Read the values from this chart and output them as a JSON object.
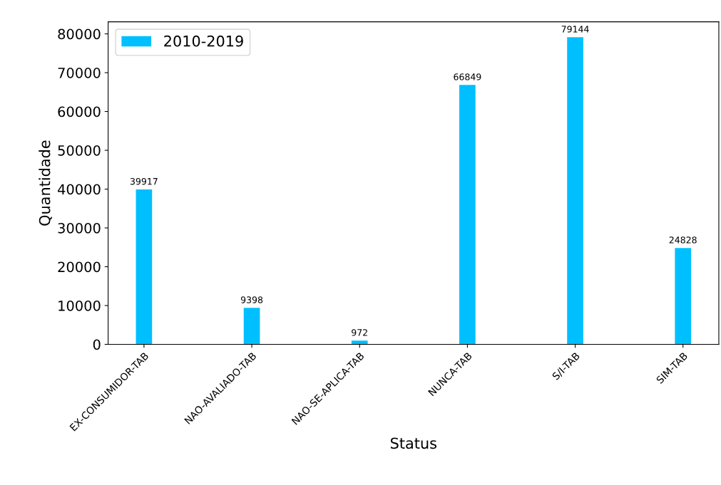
{
  "chart_data": {
    "type": "bar",
    "xlabel": "Status",
    "ylabel": "Quantidade",
    "categories": [
      "EX-CONSUMIDOR-TAB",
      "NAO-AVALIADO-TAB",
      "NAO-SE-APLICA-TAB",
      "NUNCA-TAB",
      "S/I-TAB",
      "SIM-TAB"
    ],
    "series": [
      {
        "name": "2010-2019",
        "color": "#00bfff",
        "values": [
          39917,
          9398,
          972,
          66849,
          79144,
          24828
        ]
      }
    ],
    "ylim": [
      0,
      83100
    ],
    "yticks": [
      0,
      10000,
      20000,
      30000,
      40000,
      50000,
      60000,
      70000,
      80000
    ],
    "data_labels": true,
    "legend": "top left",
    "grid": false
  }
}
